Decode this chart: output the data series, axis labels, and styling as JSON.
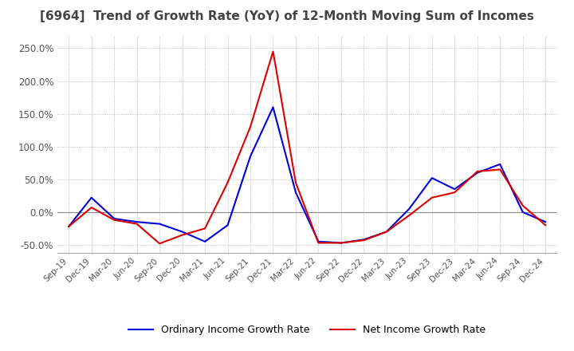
{
  "title": "[6964]  Trend of Growth Rate (YoY) of 12-Month Moving Sum of Incomes",
  "title_fontsize": 11,
  "ylim": [
    -62,
    270
  ],
  "yticks": [
    -50,
    0,
    50,
    100,
    150,
    200,
    250
  ],
  "background_color": "#ffffff",
  "grid_color": "#aaaaaa",
  "ordinary_color": "#0000dd",
  "net_color": "#dd0000",
  "x_labels": [
    "Sep-19",
    "Dec-19",
    "Mar-20",
    "Jun-20",
    "Sep-20",
    "Dec-20",
    "Mar-21",
    "Jun-21",
    "Sep-21",
    "Dec-21",
    "Mar-22",
    "Jun-22",
    "Sep-22",
    "Dec-22",
    "Mar-23",
    "Jun-23",
    "Sep-23",
    "Dec-23",
    "Mar-24",
    "Jun-24",
    "Sep-24",
    "Dec-24"
  ],
  "ordinary_income_growth": [
    -22,
    22,
    -10,
    -15,
    -18,
    -30,
    -45,
    -20,
    85,
    160,
    30,
    -45,
    -47,
    -42,
    -30,
    5,
    52,
    35,
    60,
    73,
    0,
    -15
  ],
  "net_income_growth": [
    -22,
    7,
    -12,
    -18,
    -48,
    -35,
    -25,
    45,
    130,
    245,
    45,
    -47,
    -47,
    -43,
    -30,
    -5,
    22,
    30,
    62,
    65,
    10,
    -20
  ]
}
